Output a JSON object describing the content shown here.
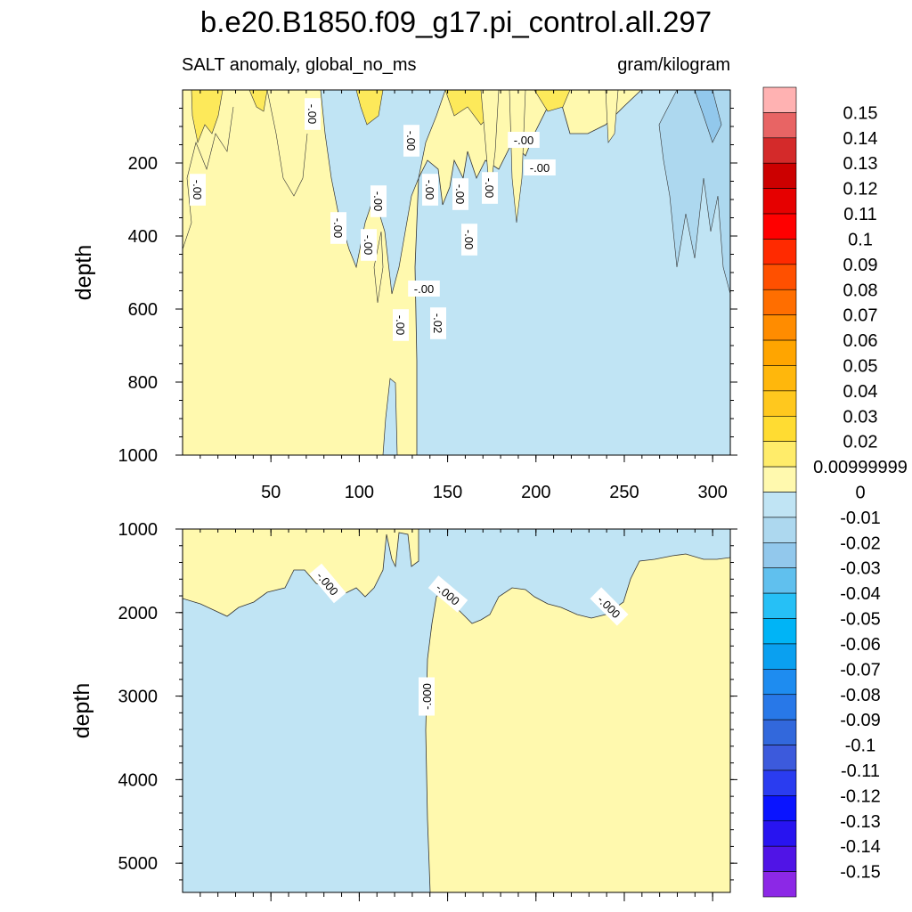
{
  "figure": {
    "title": "b.e20.B1850.f09_g17.pi_control.all.297",
    "left_string": "SALT anomaly, global_no_ms",
    "right_string": "gram/kilogram"
  },
  "chart_data": [
    {
      "type": "contour",
      "panel": "upper",
      "title": "b.e20.B1850.f09_g17.pi_control.all.297",
      "left_subtitle": "SALT anomaly, global_no_ms",
      "right_subtitle": "gram/kilogram",
      "ylabel": "depth",
      "xlim": [
        0,
        310
      ],
      "ylim": [
        1000,
        0
      ],
      "y_reversed": true,
      "x_ticks": [
        50,
        100,
        150,
        200,
        250,
        300
      ],
      "y_ticks": [
        200,
        400,
        600,
        800,
        1000
      ],
      "regions": [
        {
          "sign": "positive",
          "fill": "#fff9ae",
          "x": [
            0,
            132
          ],
          "note": "upper-left, full depth"
        },
        {
          "sign": "negative",
          "fill": "#c0e4f4",
          "x": [
            132,
            310
          ],
          "note": "right side, full depth"
        },
        {
          "sign": "negative",
          "fill": "#add8ef",
          "x": [
            265,
            310
          ],
          "depth": [
            0,
            450
          ],
          "note": "~-0.02 patches"
        },
        {
          "sign": "positive",
          "fill": "#fde95a",
          "x": [
            0,
            150
          ],
          "depth": [
            0,
            60
          ],
          "note": "~0.01 surface patches"
        }
      ],
      "contour_labels": [
        "-.00",
        "-.00",
        "-.00",
        "-.00",
        "-.00",
        "-.00",
        "-.00",
        "-.00",
        "-.00",
        "-.00",
        "-.00",
        "-.00",
        "-.00",
        "-.00",
        "-.02"
      ]
    },
    {
      "type": "contour",
      "panel": "lower",
      "ylabel": "depth",
      "xlim": [
        0,
        310
      ],
      "ylim": [
        5350,
        1000
      ],
      "y_reversed": true,
      "y_ticks": [
        1000,
        2000,
        3000,
        4000,
        5000
      ],
      "regions": [
        {
          "sign": "positive",
          "fill": "#fff9ae",
          "note": "upper-left above ~1800 m, lower-right below ~1500-2100 m"
        },
        {
          "sign": "negative",
          "fill": "#c0e4f4",
          "note": "lower-left and upper-right"
        }
      ],
      "contour_labels": [
        "-.000",
        "-.000",
        "-.000",
        "-.000"
      ]
    }
  ],
  "colorbar": {
    "levels": [
      "0.15",
      "0.14",
      "0.13",
      "0.12",
      "0.11",
      "0.1",
      "0.09",
      "0.08",
      "0.07",
      "0.06",
      "0.05",
      "0.04",
      "0.03",
      "0.02",
      "0.00999999",
      "0",
      "-0.01",
      "-0.02",
      "-0.03",
      "-0.04",
      "-0.05",
      "-0.06",
      "-0.07",
      "-0.08",
      "-0.09",
      "-0.1",
      "-0.11",
      "-0.12",
      "-0.13",
      "-0.14",
      "-0.15"
    ],
    "colors": [
      "#ffb2b2",
      "#e86464",
      "#d42a2a",
      "#cc0000",
      "#e60000",
      "#ff0000",
      "#ff2a00",
      "#ff5000",
      "#ff6e00",
      "#ff8c00",
      "#ffa500",
      "#ffb70c",
      "#ffc81e",
      "#ffdc32",
      "#ffec6a",
      "#fff9ae",
      "#c0e4f4",
      "#add8ef",
      "#92c8ec",
      "#60c0ee",
      "#26c0f6",
      "#00b4f6",
      "#0aa0f0",
      "#1e8cf0",
      "#2878e8",
      "#3268dc",
      "#3c5adc",
      "#2a3cf0",
      "#0a14ff",
      "#2814f0",
      "#5014e6",
      "#8c28e6"
    ]
  }
}
